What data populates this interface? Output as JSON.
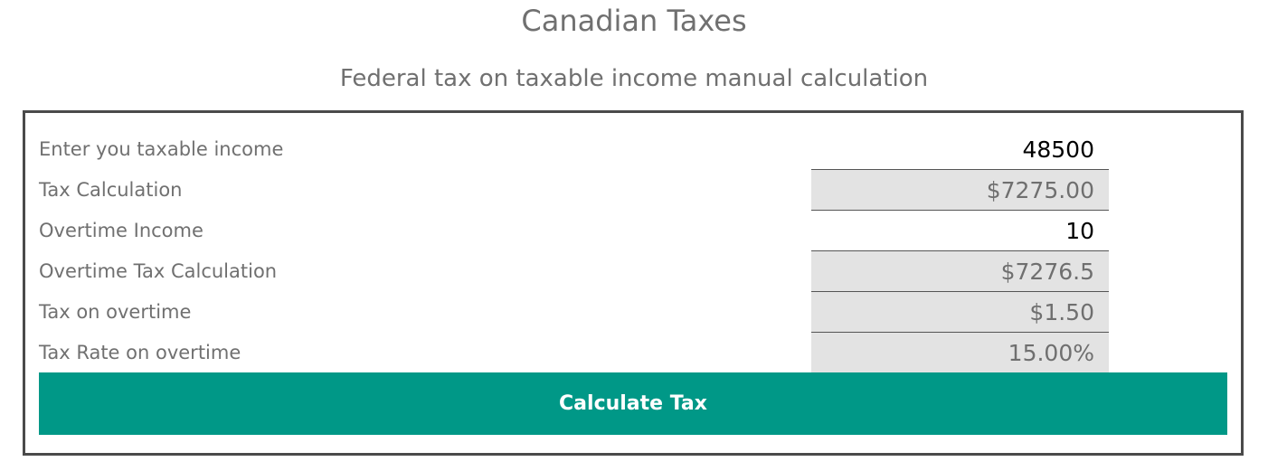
{
  "header": {
    "title": "Canadian Taxes",
    "subtitle": "Federal tax on taxable income manual calculation"
  },
  "form": {
    "rows": [
      {
        "label": "Enter you taxable income",
        "value": "48500",
        "editable": true
      },
      {
        "label": "Tax Calculation",
        "value": "$7275.00",
        "editable": false
      },
      {
        "label": "Overtime Income",
        "value": "10",
        "editable": true
      },
      {
        "label": "Overtime Tax Calculation",
        "value": "$7276.5",
        "editable": false
      },
      {
        "label": "Tax on overtime",
        "value": "$1.50",
        "editable": false
      },
      {
        "label": "Tax Rate on overtime",
        "value": "15.00%",
        "editable": false
      }
    ],
    "button_label": "Calculate Tax"
  },
  "colors": {
    "button": "#009887",
    "readonly_field": "#e3e3e3",
    "panel_border": "#4a4a4a",
    "text": "#707070"
  }
}
